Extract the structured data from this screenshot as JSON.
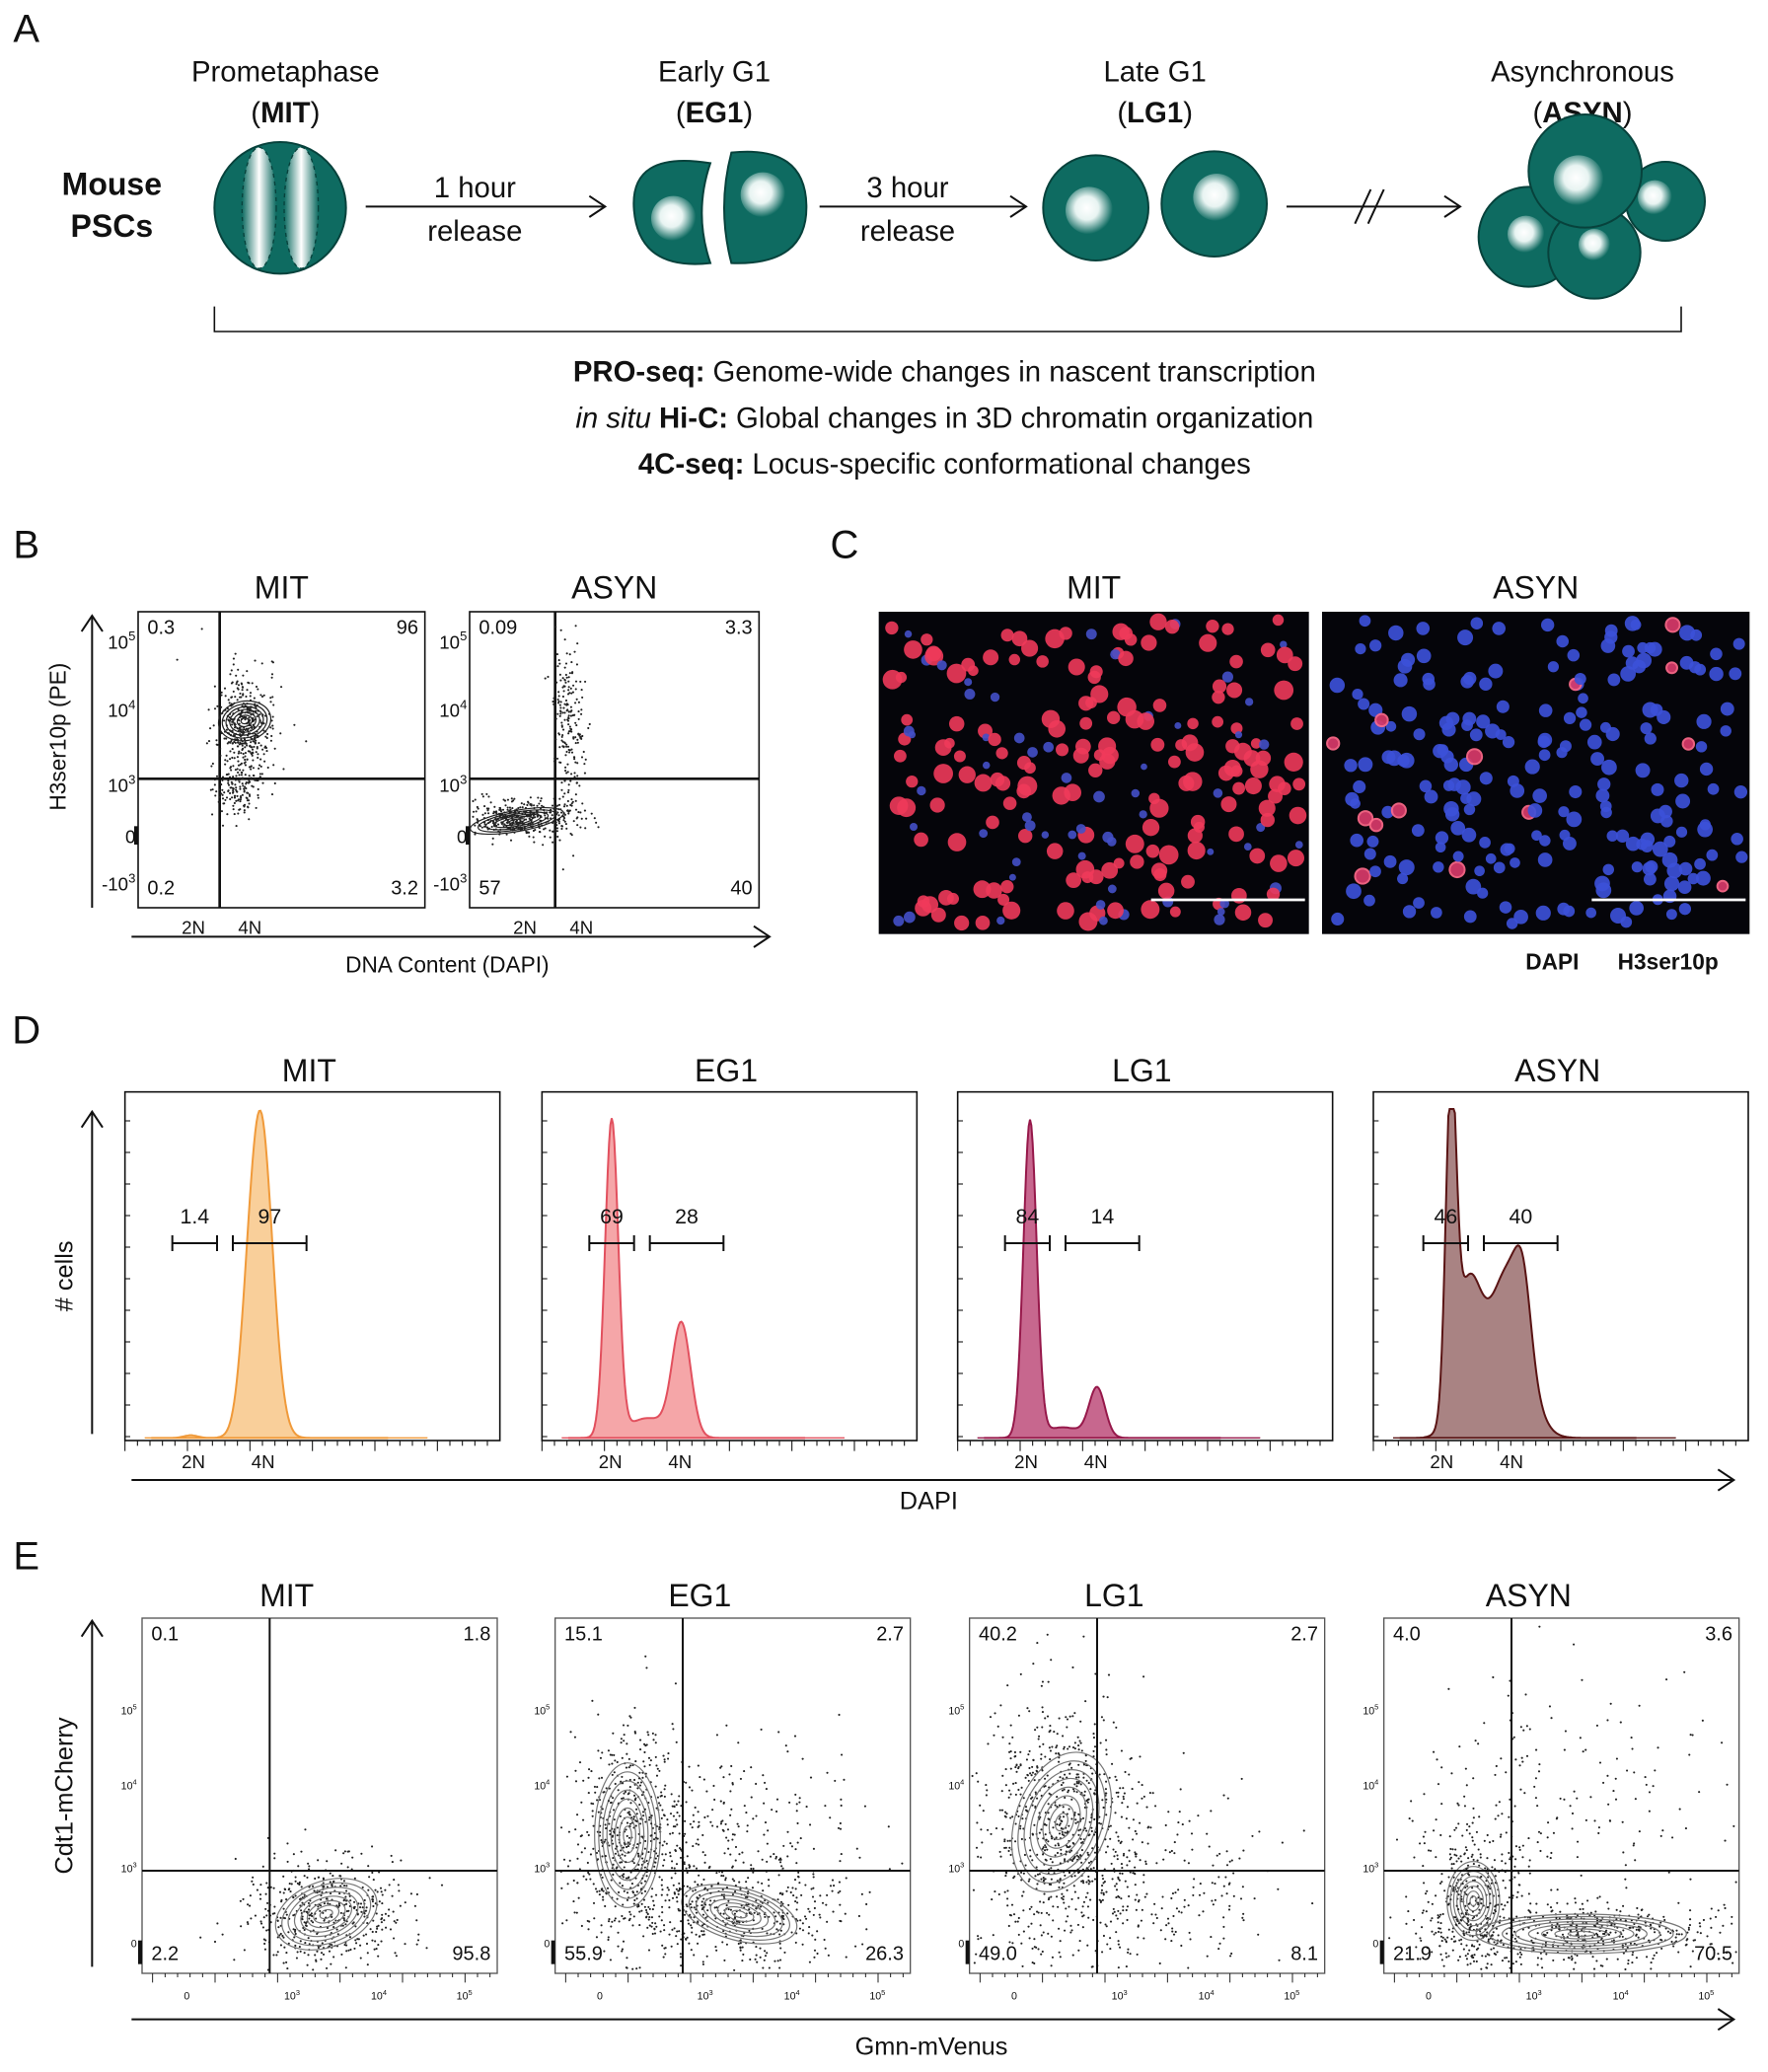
{
  "panel_a": {
    "label": "A",
    "cell_type": [
      "Mouse",
      "PSCs"
    ],
    "stages": [
      {
        "name": "Prometaphase",
        "abbr": [
          "(",
          "MIT",
          ")"
        ]
      },
      {
        "name": "Early G1",
        "abbr": [
          "(",
          "EG1",
          ")"
        ]
      },
      {
        "name": "Late G1",
        "abbr": [
          "(",
          "LG1",
          ")"
        ]
      },
      {
        "name": "Asynchronous",
        "abbr": [
          "(",
          "ASYN",
          ")"
        ]
      }
    ],
    "transitions": [
      [
        "1 hour",
        "release"
      ],
      [
        "3 hour",
        "release"
      ]
    ],
    "methods": [
      {
        "term": "PRO-seq:",
        "description": "Genome-wide changes in nascent transcription"
      },
      {
        "qualifier": "in situ",
        "term": "Hi-C:",
        "description": "Global changes in 3D chromatin organization"
      },
      {
        "term": "4C-seq:",
        "description": "Locus-specific conformational changes"
      }
    ]
  },
  "panel_b": {
    "label": "B",
    "y_label": "H3ser10p (PE)",
    "x_label": "DNA Content (DAPI)",
    "x_ticks": [
      "2N",
      "4N"
    ],
    "y_ticks": [
      {
        "base": "10",
        "exp": "5"
      },
      {
        "base": "10",
        "exp": "4"
      },
      {
        "base": "10",
        "exp": "3"
      },
      {
        "base": "0"
      },
      {
        "base": "-10",
        "exp": "3"
      }
    ],
    "plots": [
      {
        "title": "MIT",
        "quadrants": {
          "upper_left": "0.3",
          "upper_right": "96",
          "lower_left": "0.2",
          "lower_right": "3.2"
        }
      },
      {
        "title": "ASYN",
        "quadrants": {
          "upper_left": "0.09",
          "upper_right": "3.3",
          "lower_left": "57",
          "lower_right": "40"
        }
      }
    ]
  },
  "panel_c": {
    "label": "C",
    "images": [
      {
        "title": "MIT"
      },
      {
        "title": "ASYN"
      }
    ],
    "legend": [
      {
        "text": "DAPI",
        "color": "#2b3fc4"
      },
      {
        "text": "H3ser10p",
        "color": "#e8303a"
      }
    ]
  },
  "panel_d": {
    "label": "D",
    "y_label": "# cells",
    "x_label": "DAPI",
    "x_ticks": [
      "2N",
      "4N"
    ],
    "plots": [
      {
        "title": "MIT",
        "gates": [
          "1.4",
          "97"
        ],
        "fill": "#f9cf9a",
        "color": "#f09a3a"
      },
      {
        "title": "EG1",
        "gates": [
          "69",
          "28"
        ],
        "fill": "#f5a6a8",
        "color": "#e2505e"
      },
      {
        "title": "LG1",
        "gates": [
          "84",
          "14"
        ],
        "fill": "#c7678e",
        "color": "#96184a"
      },
      {
        "title": "ASYN",
        "gates": [
          "46",
          "40"
        ],
        "fill": "#a98383",
        "color": "#5a1414"
      }
    ]
  },
  "panel_e": {
    "label": "E",
    "y_label": "Cdt1-mCherry",
    "x_label": "Gmn-mVenus",
    "y_ticks": [
      {
        "base": "10",
        "exp": "5"
      },
      {
        "base": "10",
        "exp": "4"
      },
      {
        "base": "10",
        "exp": "3"
      },
      {
        "base": "0"
      }
    ],
    "x_ticks": [
      {
        "base": "0"
      },
      {
        "base": "10",
        "exp": "3"
      },
      {
        "base": "10",
        "exp": "4"
      },
      {
        "base": "10",
        "exp": "5"
      }
    ],
    "plots": [
      {
        "title": "MIT",
        "quadrants": {
          "upper_left": "0.1",
          "upper_right": "1.8",
          "lower_left": "2.2",
          "lower_right": "95.8"
        }
      },
      {
        "title": "EG1",
        "quadrants": {
          "upper_left": "15.1",
          "upper_right": "2.7",
          "lower_left": "55.9",
          "lower_right": "26.3"
        }
      },
      {
        "title": "LG1",
        "quadrants": {
          "upper_left": "40.2",
          "upper_right": "2.7",
          "lower_left": "49.0",
          "lower_right": "8.1"
        }
      },
      {
        "title": "ASYN",
        "quadrants": {
          "upper_left": "4.0",
          "upper_right": "3.6",
          "lower_left": "21.9",
          "lower_right": "70.5"
        }
      }
    ]
  }
}
